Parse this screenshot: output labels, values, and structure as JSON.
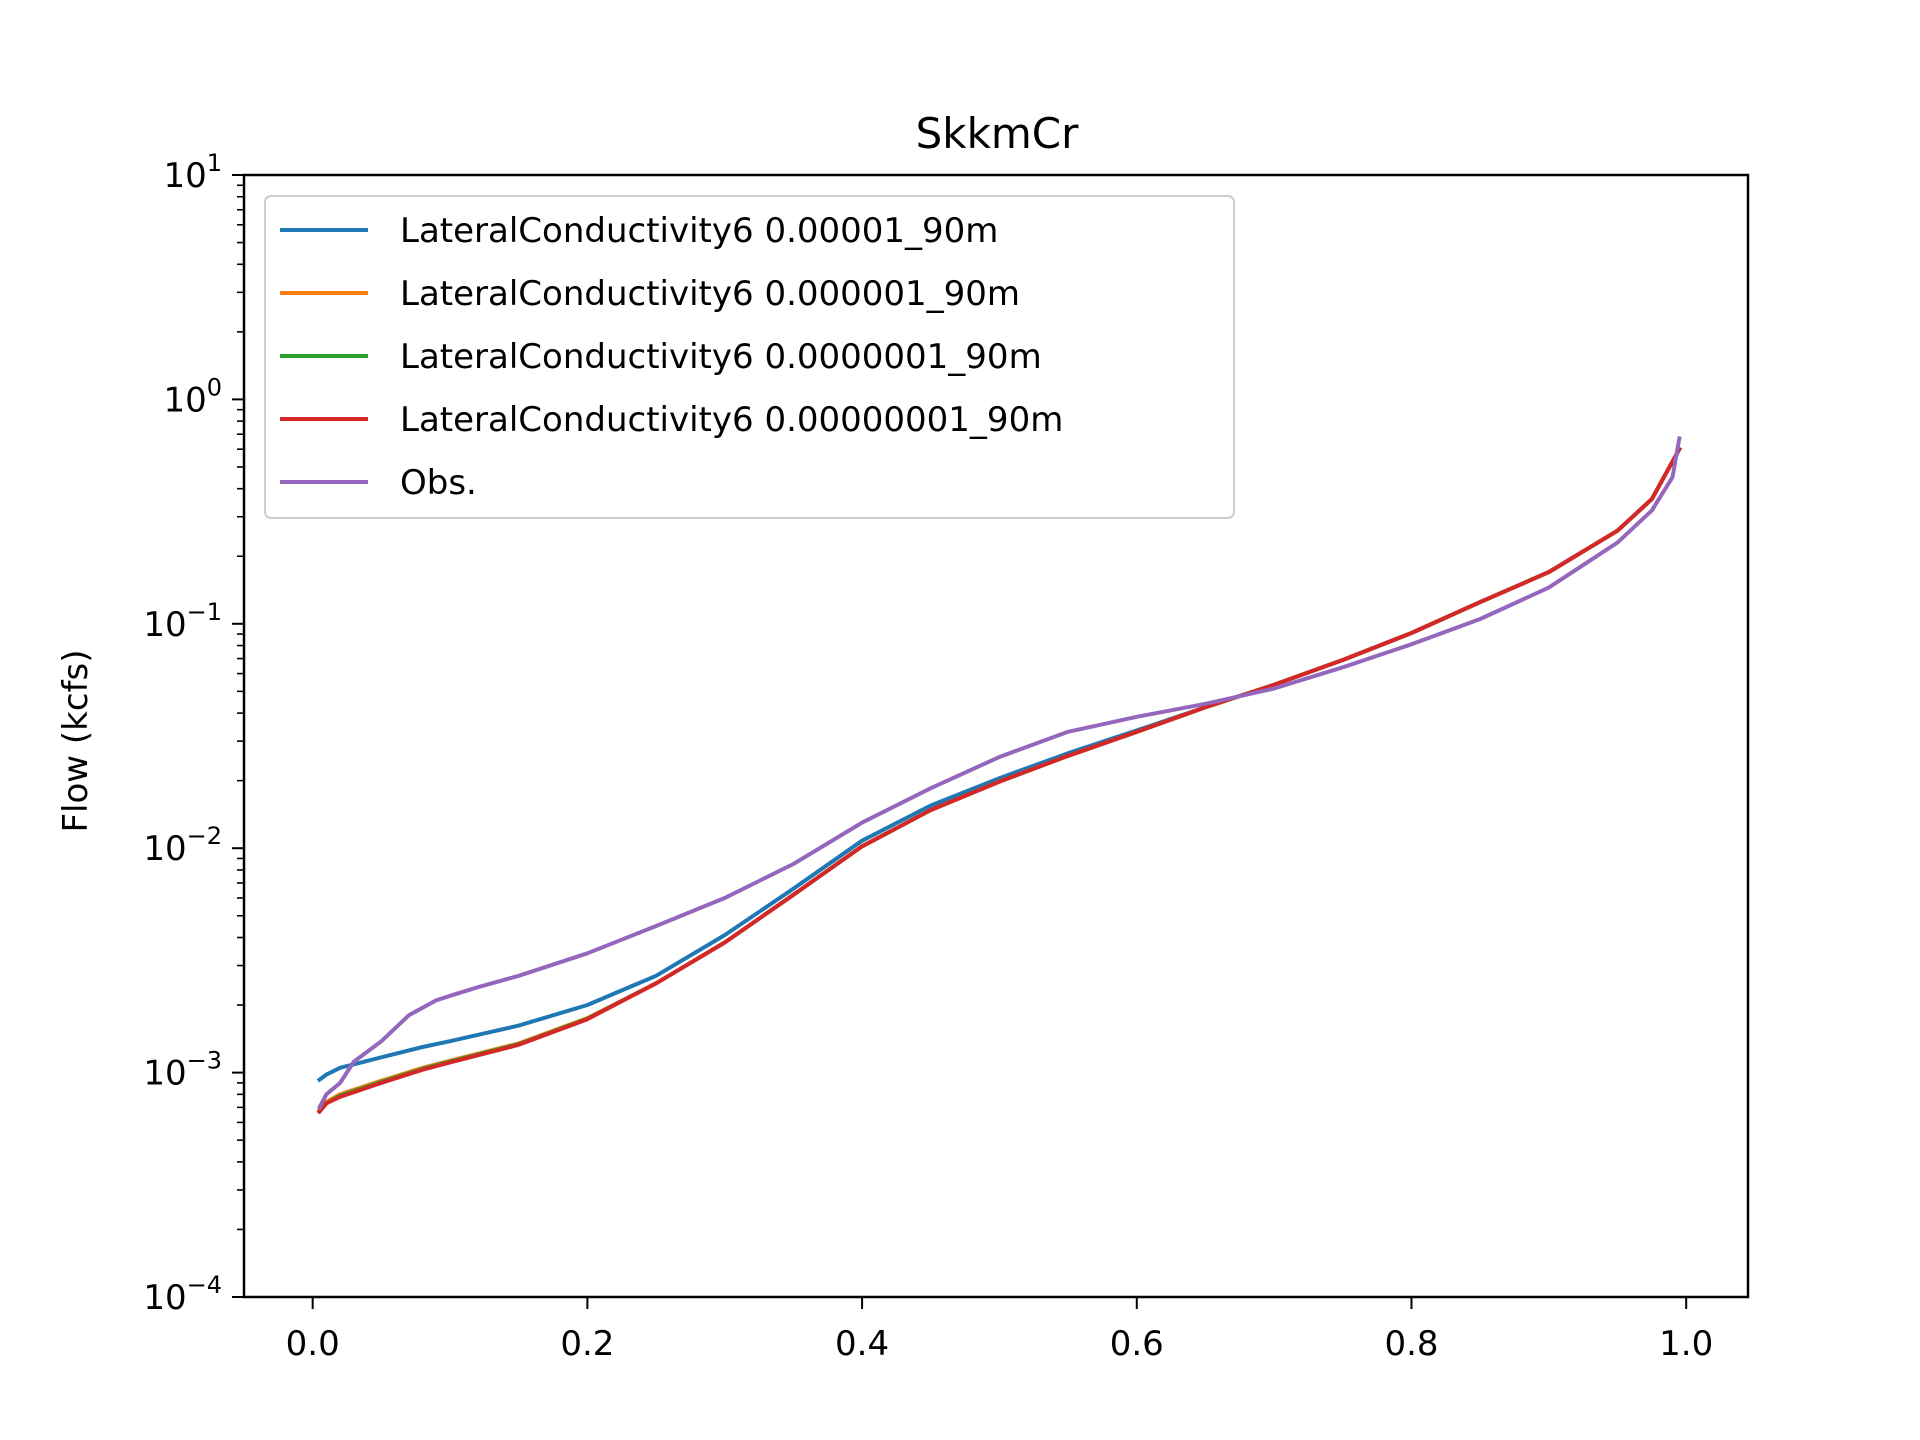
{
  "chart_data": {
    "type": "line",
    "title": "SkkmCr",
    "xlabel": "",
    "ylabel": "Flow (kcfs)",
    "xlim": [
      -0.05,
      1.045
    ],
    "ylim": [
      0.0001,
      10
    ],
    "yscale": "log",
    "grid": false,
    "legend_position": "top-left",
    "x_ticks": [
      "0.0",
      "0.2",
      "0.4",
      "0.6",
      "0.8",
      "1.0"
    ],
    "y_ticks": [
      {
        "base": "10",
        "exp": "1",
        "value": 10
      },
      {
        "base": "10",
        "exp": "0",
        "value": 1
      },
      {
        "base": "10",
        "exp": "−1",
        "value": 0.1
      },
      {
        "base": "10",
        "exp": "−2",
        "value": 0.01
      },
      {
        "base": "10",
        "exp": "−3",
        "value": 0.001
      },
      {
        "base": "10",
        "exp": "−4",
        "value": 0.0001
      }
    ],
    "series": [
      {
        "name": "LateralConductivity6 0.00001_90m",
        "color": "#1f77b4",
        "x": [
          0.005,
          0.01,
          0.02,
          0.05,
          0.08,
          0.1,
          0.15,
          0.2,
          0.25,
          0.3,
          0.35,
          0.4,
          0.45,
          0.5,
          0.55,
          0.6,
          0.65,
          0.7,
          0.75,
          0.8,
          0.85,
          0.9,
          0.95,
          0.975,
          0.995
        ],
        "y": [
          0.00093,
          0.00098,
          0.00105,
          0.00117,
          0.0013,
          0.00138,
          0.00162,
          0.002,
          0.0027,
          0.0041,
          0.0066,
          0.0108,
          0.0155,
          0.0205,
          0.0265,
          0.0335,
          0.0425,
          0.0535,
          0.069,
          0.091,
          0.125,
          0.17,
          0.26,
          0.36,
          0.6
        ]
      },
      {
        "name": "LateralConductivity6 0.000001_90m",
        "color": "#ff7f0e",
        "x": [
          0.005,
          0.01,
          0.02,
          0.05,
          0.08,
          0.1,
          0.15,
          0.2,
          0.25,
          0.3,
          0.35,
          0.4,
          0.45,
          0.5,
          0.55,
          0.6,
          0.65,
          0.7,
          0.75,
          0.8,
          0.85,
          0.9,
          0.95,
          0.975,
          0.995
        ],
        "y": [
          0.00068,
          0.00074,
          0.0008,
          0.00092,
          0.00105,
          0.00113,
          0.00135,
          0.00175,
          0.0025,
          0.0038,
          0.0062,
          0.0102,
          0.0148,
          0.0198,
          0.0258,
          0.033,
          0.0425,
          0.0535,
          0.069,
          0.091,
          0.125,
          0.17,
          0.26,
          0.36,
          0.6
        ]
      },
      {
        "name": "LateralConductivity6 0.0000001_90m",
        "color": "#2ca02c",
        "x": [
          0.005,
          0.01,
          0.02,
          0.05,
          0.08,
          0.1,
          0.15,
          0.2,
          0.25,
          0.3,
          0.35,
          0.4,
          0.45,
          0.5,
          0.55,
          0.6,
          0.65,
          0.7,
          0.75,
          0.8,
          0.85,
          0.9,
          0.95,
          0.975,
          0.995
        ],
        "y": [
          0.00067,
          0.00073,
          0.00079,
          0.00091,
          0.00104,
          0.00112,
          0.00134,
          0.00174,
          0.0025,
          0.0038,
          0.0062,
          0.0102,
          0.0148,
          0.0198,
          0.0258,
          0.033,
          0.0425,
          0.0535,
          0.069,
          0.091,
          0.125,
          0.17,
          0.26,
          0.36,
          0.6
        ]
      },
      {
        "name": "LateralConductivity6 0.00000001_90m",
        "color": "#d62728",
        "x": [
          0.005,
          0.01,
          0.02,
          0.05,
          0.08,
          0.1,
          0.15,
          0.2,
          0.25,
          0.3,
          0.35,
          0.4,
          0.45,
          0.5,
          0.55,
          0.6,
          0.65,
          0.7,
          0.75,
          0.8,
          0.85,
          0.9,
          0.95,
          0.975,
          0.995
        ],
        "y": [
          0.00067,
          0.00073,
          0.00078,
          0.0009,
          0.00103,
          0.00111,
          0.00133,
          0.00173,
          0.0025,
          0.0038,
          0.0062,
          0.0102,
          0.0148,
          0.0198,
          0.0258,
          0.033,
          0.0425,
          0.0535,
          0.069,
          0.091,
          0.125,
          0.17,
          0.26,
          0.36,
          0.6
        ]
      },
      {
        "name": "Obs.",
        "color": "#9467bd",
        "x": [
          0.005,
          0.01,
          0.02,
          0.03,
          0.05,
          0.07,
          0.09,
          0.1,
          0.12,
          0.15,
          0.2,
          0.25,
          0.3,
          0.35,
          0.4,
          0.45,
          0.5,
          0.55,
          0.6,
          0.65,
          0.7,
          0.75,
          0.8,
          0.85,
          0.9,
          0.95,
          0.975,
          0.99,
          0.995
        ],
        "y": [
          0.0007,
          0.0008,
          0.0009,
          0.00112,
          0.00138,
          0.0018,
          0.0021,
          0.0022,
          0.0024,
          0.0027,
          0.0034,
          0.0045,
          0.006,
          0.0085,
          0.013,
          0.0185,
          0.0255,
          0.033,
          0.0385,
          0.044,
          0.0515,
          0.064,
          0.081,
          0.105,
          0.145,
          0.23,
          0.32,
          0.45,
          0.67
        ]
      }
    ]
  }
}
